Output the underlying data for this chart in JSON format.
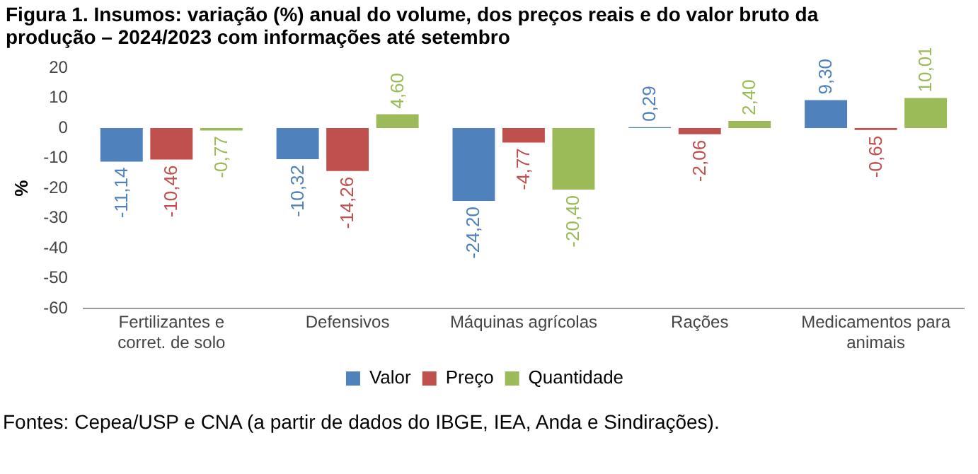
{
  "chart_data": {
    "type": "bar",
    "title": "Figura 1. Insumos: variação (%) anual do volume, dos preços reais e do valor bruto da produção – 2024/2023 com informações até setembro",
    "ylabel": "%",
    "categories": [
      "Fertilizantes e corret. de solo",
      "Defensivos",
      "Máquinas agrícolas",
      "Rações",
      "Medicamentos para animais"
    ],
    "series": [
      {
        "name": "Valor",
        "color": "#4f81bd",
        "values": [
          -11.14,
          -10.32,
          -24.2,
          0.29,
          9.3
        ],
        "value_labels": [
          "-11,14",
          "-10,32",
          "-24,20",
          "0,29",
          "9,30"
        ]
      },
      {
        "name": "Preço",
        "color": "#c0504d",
        "values": [
          -10.46,
          -14.26,
          -4.77,
          -2.06,
          -0.65
        ],
        "value_labels": [
          "-10,46",
          "-14,26",
          "-4,77",
          "-2,06",
          "-0,65"
        ]
      },
      {
        "name": "Quantidade",
        "color": "#9bbb59",
        "values": [
          -0.77,
          4.6,
          -20.4,
          2.4,
          10.01
        ],
        "value_labels": [
          "-0,77",
          "4,60",
          "-20,40",
          "2,40",
          "10,01"
        ]
      }
    ],
    "ylim": [
      -60,
      20
    ],
    "yticks": [
      -60,
      -50,
      -40,
      -30,
      -20,
      -10,
      0,
      10,
      20
    ],
    "grid": false,
    "legend": "bottom",
    "annotations": [
      "Fontes: Cepea/USP e CNA (a partir de dados do IBGE, IEA, Anda e Sindirações)."
    ]
  }
}
